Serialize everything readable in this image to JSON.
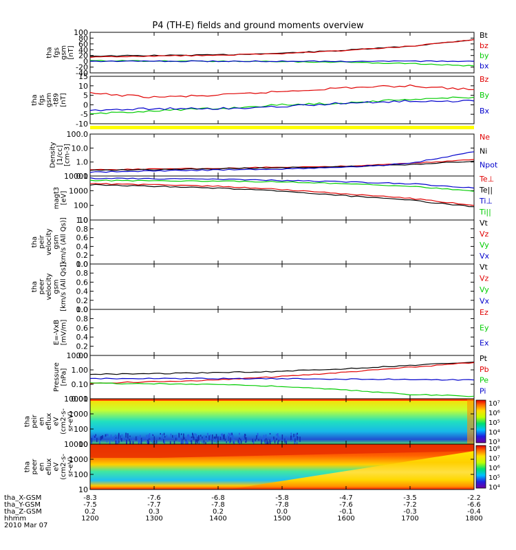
{
  "title": "P4 (TH-E) fields and ground moments overview",
  "colors": {
    "black": "#000000",
    "red": "#e00000",
    "green": "#00cc00",
    "blue": "#0000cc",
    "yellow": "#ffff00"
  },
  "panels": [
    {
      "id": "fgs-gsm",
      "ylabel": [
        "tha",
        "fgs",
        "gsm",
        "[nT]"
      ],
      "ylim": [
        -40,
        100
      ],
      "ticks": [
        "100",
        "80",
        "60",
        "40",
        "20",
        "0",
        "-20",
        "-40"
      ],
      "legend": [
        {
          "text": "Bt",
          "color": "#000000"
        },
        {
          "text": "bz",
          "color": "#e00000"
        },
        {
          "text": "by",
          "color": "#00cc00"
        },
        {
          "text": "bx",
          "color": "#0000cc"
        }
      ]
    },
    {
      "id": "fgs-dsl",
      "ylabel": [
        "tha",
        "fgs",
        "gsm",
        "-t89",
        "[nT]"
      ],
      "ylim": [
        -10,
        15
      ],
      "ticks": [
        "15",
        "10",
        "5",
        "0",
        "-5",
        "-10"
      ],
      "legend": [
        {
          "text": "Bz",
          "color": "#e00000"
        },
        {
          "text": "By",
          "color": "#00cc00"
        },
        {
          "text": "Bx",
          "color": "#0000cc"
        }
      ]
    },
    {
      "id": "density",
      "ylabel": [
        "Density",
        "[1/cc]",
        "[cm-3]"
      ],
      "ylim": [
        0.1,
        200
      ],
      "log": true,
      "ticks": [
        "100.0",
        "10.0",
        "1.0",
        "0.1"
      ],
      "legend": [
        {
          "text": "Ne",
          "color": "#e00000"
        },
        {
          "text": "Ni",
          "color": "#000000"
        },
        {
          "text": "Npot",
          "color": "#0000cc"
        }
      ]
    },
    {
      "id": "temperature",
      "ylabel": [
        "magt3",
        "[eV]"
      ],
      "ylim": [
        10,
        10000
      ],
      "log": true,
      "ticks": [
        "10000",
        "1000",
        "100",
        "10"
      ],
      "legend": [
        {
          "text": "Te⊥",
          "color": "#e00000"
        },
        {
          "text": "Te||",
          "color": "#000000"
        },
        {
          "text": "Ti⊥",
          "color": "#0000cc"
        },
        {
          "text": "Ti||",
          "color": "#00cc00"
        }
      ]
    },
    {
      "id": "peir-velocity",
      "ylabel": [
        "tha",
        "peir",
        "velocity",
        "gsm",
        "[km/s (All Qs)]"
      ],
      "ylim": [
        0,
        1
      ],
      "ticks": [
        "1.0",
        "0.8",
        "0.6",
        "0.4",
        "0.2",
        "0.0"
      ],
      "legend": [
        {
          "text": "Vt",
          "color": "#000000"
        },
        {
          "text": "Vz",
          "color": "#e00000"
        },
        {
          "text": "Vy",
          "color": "#00cc00"
        },
        {
          "text": "Vx",
          "color": "#0000cc"
        }
      ]
    },
    {
      "id": "peer-velocity",
      "ylabel": [
        "tha",
        "peer",
        "velocity",
        "gsm",
        "[km/s (All Qs)]"
      ],
      "ylim": [
        0,
        1
      ],
      "ticks": [
        "1.0",
        "0.8",
        "0.6",
        "0.4",
        "0.2",
        "0.0"
      ],
      "legend": [
        {
          "text": "Vt",
          "color": "#000000"
        },
        {
          "text": "Vz",
          "color": "#e00000"
        },
        {
          "text": "Vy",
          "color": "#00cc00"
        },
        {
          "text": "Vx",
          "color": "#0000cc"
        }
      ]
    },
    {
      "id": "efield",
      "ylabel": [
        "E=-VxB",
        "[mV/m]"
      ],
      "ylim": [
        0,
        1
      ],
      "ticks": [
        "1.0",
        "0.8",
        "0.6",
        "0.4",
        "0.2",
        "0.0"
      ],
      "legend": [
        {
          "text": "Ez",
          "color": "#e00000"
        },
        {
          "text": "Ey",
          "color": "#00cc00"
        },
        {
          "text": "Ex",
          "color": "#0000cc"
        }
      ]
    },
    {
      "id": "pressure",
      "ylabel": [
        "Pressure",
        "[nPa]"
      ],
      "ylim": [
        0.01,
        10
      ],
      "log": true,
      "ticks": [
        "10.00",
        "1.00",
        "0.10",
        "0.01"
      ],
      "legend": [
        {
          "text": "Pt",
          "color": "#000000"
        },
        {
          "text": "Pb",
          "color": "#e00000"
        },
        {
          "text": "Pe",
          "color": "#00cc00"
        },
        {
          "text": "Pi",
          "color": "#0000cc"
        }
      ]
    },
    {
      "id": "peir-eflux",
      "ylabel": [
        "tha",
        "peir",
        "en",
        "eflux",
        "eV",
        "(cm2-s-",
        "sr-eV)"
      ],
      "ylim": [
        5,
        20000
      ],
      "log": true,
      "ticks": [
        "10000",
        "1000",
        "100",
        "10"
      ],
      "colorbar_ticks": [
        "10⁷",
        "10⁶",
        "10⁵",
        "10⁴",
        "10³"
      ]
    },
    {
      "id": "peer-eflux",
      "ylabel": [
        "tha",
        "peer",
        "en",
        "eflux",
        "eV",
        "(cm2-s-",
        "sr-eV)"
      ],
      "ylim": [
        7,
        20000
      ],
      "log": true,
      "ticks": [
        "10000",
        "1000",
        "100",
        "10"
      ],
      "colorbar_ticks": [
        "10⁸",
        "10⁷",
        "10⁶",
        "10⁵",
        "10⁴"
      ]
    }
  ],
  "time_axis": {
    "labels": [
      "tha_X-GSM",
      "tha_Y-GSM",
      "tha_Z-GSM",
      "hhmm",
      "2010 Mar 07"
    ],
    "rows": [
      [
        "-8.3",
        "-7.6",
        "-6.8",
        "-5.8",
        "-4.7",
        "-3.5",
        "-2.2"
      ],
      [
        "-7.5",
        "-7.7",
        "-7.8",
        "-7.8",
        "-7.6",
        "-7.2",
        "-6.6"
      ],
      [
        "0.2",
        "0.3",
        "0.2",
        "0.0",
        "-0.1",
        "-0.3",
        "-0.4"
      ],
      [
        "1200",
        "1300",
        "1400",
        "1500",
        "1600",
        "1700",
        "1800"
      ]
    ]
  },
  "chart_data": {
    "type": "line",
    "x": [
      1200,
      1300,
      1400,
      1500,
      1600,
      1700,
      1800
    ],
    "xlabel": "hhmm",
    "panels": [
      {
        "panel": "fgs-gsm",
        "series": [
          {
            "name": "Bt",
            "values": [
              18,
              20,
              22,
              28,
              38,
              52,
              75
            ]
          },
          {
            "name": "bz",
            "values": [
              15,
              18,
              21,
              27,
              37,
              52,
              75
            ]
          },
          {
            "name": "by",
            "values": [
              2,
              1,
              0,
              -1,
              -3,
              -8,
              -16
            ]
          },
          {
            "name": "bx",
            "values": [
              0,
              0,
              0,
              0,
              0,
              0,
              0
            ]
          }
        ]
      },
      {
        "panel": "fgs-dsl",
        "series": [
          {
            "name": "Bz",
            "values": [
              6,
              4,
              5,
              7,
              9,
              10,
              8
            ]
          },
          {
            "name": "By",
            "values": [
              -5,
              -3,
              -2,
              0,
              1,
              3,
              4
            ]
          },
          {
            "name": "Bx",
            "values": [
              -3,
              -2,
              -2,
              -1,
              1,
              2,
              2
            ]
          }
        ]
      },
      {
        "panel": "density",
        "series": [
          {
            "name": "Ne",
            "values": [
              0.3,
              0.35,
              0.4,
              0.5,
              0.6,
              1.0,
              2.0
            ]
          },
          {
            "name": "Ni",
            "values": [
              0.28,
              0.32,
              0.38,
              0.45,
              0.55,
              0.8,
              1.5
            ]
          },
          {
            "name": "Npot",
            "values": [
              0.2,
              0.25,
              0.3,
              0.35,
              0.5,
              1.0,
              8.0
            ]
          }
        ]
      },
      {
        "panel": "temperature",
        "series": [
          {
            "name": "Te⊥",
            "values": [
              3000,
              2500,
              2000,
              1200,
              600,
              300,
              100
            ]
          },
          {
            "name": "Te||",
            "values": [
              2500,
              2000,
              1500,
              900,
              450,
              220,
              80
            ]
          },
          {
            "name": "Ti⊥",
            "values": [
              7000,
              6500,
              6000,
              5000,
              4000,
              3000,
              1500
            ]
          },
          {
            "name": "Ti||",
            "values": [
              5000,
              4800,
              4500,
              4000,
              3000,
              2000,
              900
            ]
          }
        ]
      },
      {
        "panel": "pressure",
        "series": [
          {
            "name": "Pt",
            "values": [
              0.5,
              0.55,
              0.65,
              0.8,
              1.2,
              2.0,
              3.5
            ]
          },
          {
            "name": "Pb",
            "values": [
              0.12,
              0.15,
              0.2,
              0.35,
              0.7,
              1.5,
              3.2
            ]
          },
          {
            "name": "Pe",
            "values": [
              0.12,
              0.11,
              0.1,
              0.07,
              0.04,
              0.02,
              0.015
            ]
          },
          {
            "name": "Pi",
            "values": [
              0.25,
              0.25,
              0.25,
              0.24,
              0.23,
              0.22,
              0.2
            ]
          }
        ]
      }
    ]
  }
}
